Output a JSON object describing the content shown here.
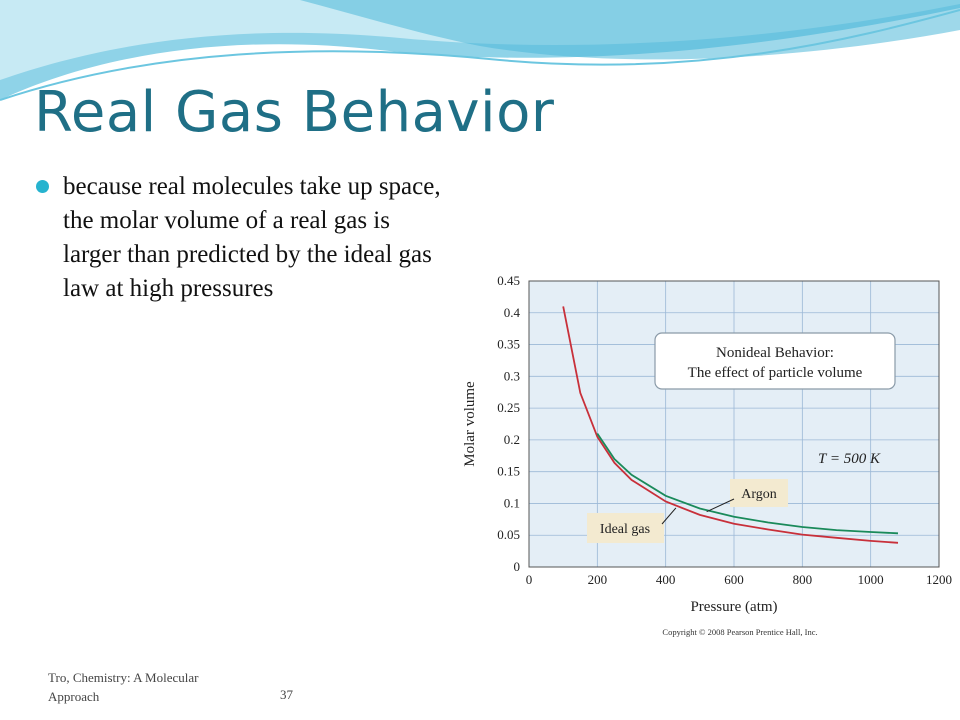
{
  "slide": {
    "title": "Real Gas Behavior",
    "bullet": "because real molecules take up space, the molar volume of a real gas is larger than predicted by the ideal gas law at high pressures",
    "footer_source": "Tro, Chemistry: A Molecular Approach",
    "page_number": "37"
  },
  "colors": {
    "title": "#1f6f86",
    "bullet": "#26b3cf",
    "argon": "#1a8a5a",
    "ideal": "#c8303a"
  },
  "chart_data": {
    "type": "line",
    "xlabel": "Pressure (atm)",
    "ylabel": "Molar volume",
    "xlim": [
      0,
      1200
    ],
    "ylim": [
      0,
      0.45
    ],
    "x_ticks": [
      "0",
      "200",
      "400",
      "600",
      "800",
      "1000",
      "1200"
    ],
    "y_ticks": [
      "0",
      "0.05",
      "0.1",
      "0.15",
      "0.2",
      "0.25",
      "0.3",
      "0.35",
      "0.4",
      "0.45"
    ],
    "grid": true,
    "annotation_box": [
      "Nonideal Behavior:",
      "The effect of particle volume"
    ],
    "temperature_label": "T = 500 K",
    "copyright": "Copyright © 2008 Pearson Prentice Hall, Inc.",
    "series": [
      {
        "name": "Ideal gas",
        "x": [
          100,
          150,
          200,
          250,
          300,
          400,
          500,
          600,
          700,
          800,
          900,
          1000,
          1080
        ],
        "y": [
          0.41,
          0.274,
          0.205,
          0.164,
          0.137,
          0.103,
          0.082,
          0.068,
          0.059,
          0.051,
          0.046,
          0.041,
          0.038
        ]
      },
      {
        "name": "Argon",
        "x": [
          200,
          250,
          300,
          400,
          500,
          600,
          700,
          800,
          900,
          1000,
          1080
        ],
        "y": [
          0.21,
          0.17,
          0.145,
          0.112,
          0.092,
          0.079,
          0.07,
          0.063,
          0.058,
          0.055,
          0.053
        ]
      }
    ]
  }
}
